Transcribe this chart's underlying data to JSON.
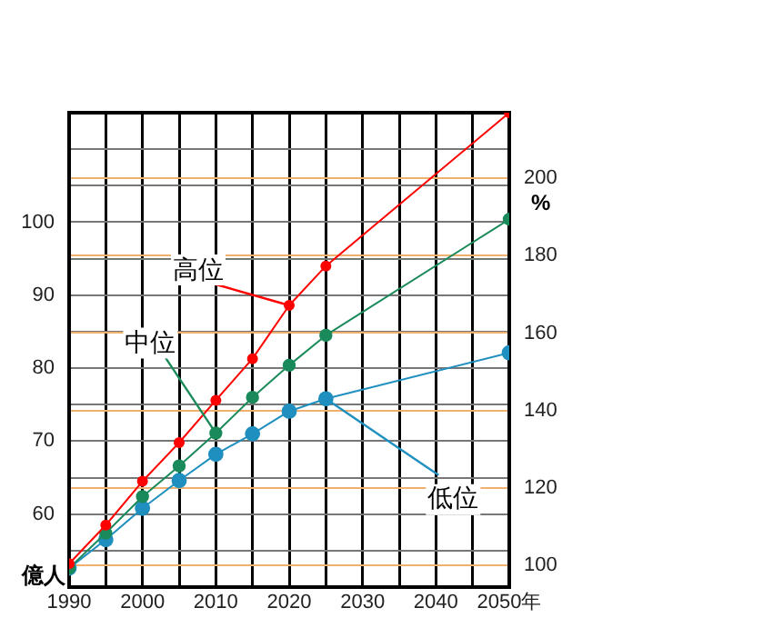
{
  "chart_data": {
    "type": "line",
    "x": [
      1990,
      1995,
      2000,
      2005,
      2010,
      2015,
      2020,
      2025,
      2050
    ],
    "series": [
      {
        "color": "#ff0000",
        "values": [
          53.2,
          58.5,
          64.5,
          69.8,
          75.6,
          81.3,
          88.6,
          94.0,
          115
        ]
      },
      {
        "color": "#1a8a5a",
        "values": [
          52.6,
          57.4,
          62.4,
          66.6,
          71.1,
          76.0,
          80.4,
          84.5,
          100.4
        ]
      },
      {
        "color": "#1f8fbf",
        "values": [
          52.6,
          56.5,
          60.8,
          64.6,
          68.2,
          71.0,
          74.1,
          75.8,
          82.1
        ]
      }
    ],
    "xlim": [
      1990,
      2050
    ],
    "xticks": [
      1990,
      {
        "value": 1995,
        "label": null
      },
      2000,
      {
        "value": 2005,
        "label": null
      },
      2010,
      {
        "value": 2015,
        "label": null
      },
      2020,
      {
        "value": 2025,
        "label": null
      },
      2030,
      {
        "value": 2035,
        "label": null
      },
      2040,
      {
        "value": 2045,
        "label": null
      },
      {
        "value": 2050,
        "label": "2050年"
      }
    ],
    "ylim": [
      50,
      115
    ],
    "yticks": [
      {
        "value": 55,
        "label": null
      },
      60,
      {
        "value": 65,
        "label": null
      },
      70,
      {
        "value": 75,
        "label": null
      },
      80,
      {
        "value": 85,
        "label": null
      },
      90,
      {
        "value": 95,
        "label": null
      },
      100,
      {
        "value": 105,
        "label": null
      },
      {
        "value": 110,
        "label": null
      }
    ],
    "y2lim": [
      94.3,
      217
    ],
    "y2ticks": [
      100,
      120,
      140,
      160,
      180,
      200
    ],
    "ylabel": "億人",
    "y2label": "%",
    "annotations": [
      {
        "text": "高位",
        "x": 2020,
        "y": 88.6
      },
      {
        "text": "中位",
        "x": 2010,
        "y": 71.1
      },
      {
        "text": "低位",
        "x": 2025,
        "y": 75.8
      }
    ],
    "grid": true,
    "marker": "circle",
    "line_style": "solid",
    "legend": false
  }
}
